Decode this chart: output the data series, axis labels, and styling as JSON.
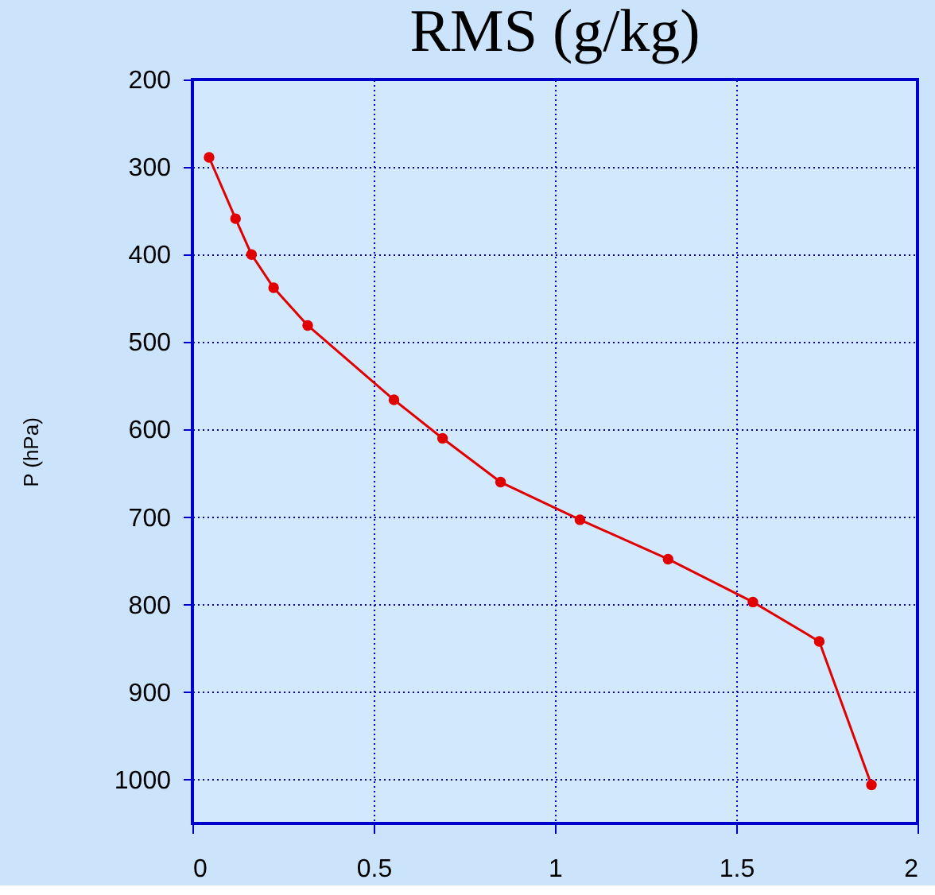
{
  "chart_data": {
    "type": "line",
    "title": "RMS (g/kg)",
    "ylabel": "P (hPa)",
    "series": [
      {
        "color": "#e00000",
        "x": [
          0.046,
          0.119,
          0.163,
          0.224,
          0.318,
          0.556,
          0.69,
          0.85,
          1.069,
          1.312,
          1.546,
          1.729,
          1.873
        ],
        "values": [
          289,
          359,
          400,
          438,
          481,
          566,
          610,
          660,
          703,
          748,
          797,
          842,
          1006
        ]
      }
    ],
    "xlim": [
      0,
      2
    ],
    "xticks": [
      0,
      0.5,
      1,
      1.5,
      2
    ],
    "ylim": [
      1050,
      200
    ],
    "yticks": [
      200,
      300,
      400,
      500,
      600,
      700,
      800,
      900,
      1000
    ],
    "grid": true,
    "marker": "circle",
    "line_style": "solid"
  }
}
